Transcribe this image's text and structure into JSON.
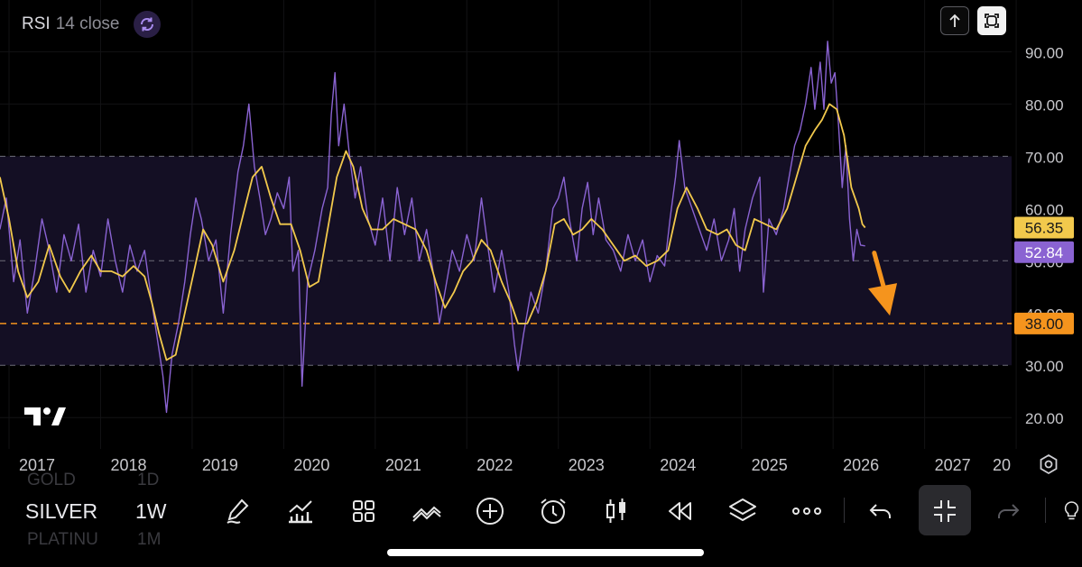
{
  "indicator": {
    "name": "RSI",
    "params": "14 close",
    "sync_icon": "sync-icon"
  },
  "controls": {
    "up_icon": "arrow-up-icon",
    "expand_icon": "expand-icon",
    "settings_icon": "gear-icon"
  },
  "chart_data": {
    "type": "line",
    "x_axis": {
      "labels": [
        "2017",
        "2018",
        "2019",
        "2020",
        "2021",
        "2022",
        "2023",
        "2024",
        "2025",
        "2026",
        "2027",
        "20"
      ],
      "range": [
        2017.0,
        2027.95
      ]
    },
    "y_axis": {
      "ticks": [
        20,
        30,
        40,
        50,
        60,
        70,
        80,
        90
      ],
      "tick_labels": [
        "20.00",
        "30.00",
        "40.00",
        "50.00",
        "60.00",
        "70.00",
        "80.00",
        "90.00"
      ],
      "range": [
        14,
        93
      ]
    },
    "overbought": 70,
    "oversold": 30,
    "midline": 50,
    "band_color": "#140f24",
    "series": [
      {
        "color": "#8a63d2",
        "last_value_label": "52.84",
        "points": [
          [
            2016.9,
            56
          ],
          [
            2016.97,
            62
          ],
          [
            2017.05,
            46
          ],
          [
            2017.12,
            54
          ],
          [
            2017.2,
            40
          ],
          [
            2017.28,
            48
          ],
          [
            2017.36,
            58
          ],
          [
            2017.44,
            52
          ],
          [
            2017.52,
            44
          ],
          [
            2017.6,
            55
          ],
          [
            2017.68,
            50
          ],
          [
            2017.76,
            57
          ],
          [
            2017.84,
            44
          ],
          [
            2017.92,
            52
          ],
          [
            2018.0,
            47
          ],
          [
            2018.08,
            58
          ],
          [
            2018.16,
            50
          ],
          [
            2018.24,
            44
          ],
          [
            2018.32,
            53
          ],
          [
            2018.4,
            48
          ],
          [
            2018.48,
            52
          ],
          [
            2018.56,
            42
          ],
          [
            2018.62,
            35
          ],
          [
            2018.68,
            28
          ],
          [
            2018.72,
            21
          ],
          [
            2018.78,
            32
          ],
          [
            2018.85,
            38
          ],
          [
            2018.92,
            46
          ],
          [
            2018.98,
            55
          ],
          [
            2019.04,
            62
          ],
          [
            2019.1,
            58
          ],
          [
            2019.18,
            50
          ],
          [
            2019.26,
            54
          ],
          [
            2019.34,
            40
          ],
          [
            2019.42,
            55
          ],
          [
            2019.5,
            67
          ],
          [
            2019.56,
            72
          ],
          [
            2019.62,
            80
          ],
          [
            2019.68,
            68
          ],
          [
            2019.74,
            62
          ],
          [
            2019.8,
            55
          ],
          [
            2019.86,
            58
          ],
          [
            2019.93,
            63
          ],
          [
            2020.0,
            60
          ],
          [
            2020.06,
            66
          ],
          [
            2020.1,
            48
          ],
          [
            2020.16,
            52
          ],
          [
            2020.2,
            26
          ],
          [
            2020.26,
            46
          ],
          [
            2020.34,
            52
          ],
          [
            2020.42,
            60
          ],
          [
            2020.48,
            64
          ],
          [
            2020.52,
            78
          ],
          [
            2020.56,
            86
          ],
          [
            2020.6,
            72
          ],
          [
            2020.66,
            80
          ],
          [
            2020.72,
            70
          ],
          [
            2020.78,
            62
          ],
          [
            2020.84,
            68
          ],
          [
            2020.92,
            58
          ],
          [
            2021.0,
            53
          ],
          [
            2021.08,
            62
          ],
          [
            2021.16,
            50
          ],
          [
            2021.24,
            64
          ],
          [
            2021.32,
            55
          ],
          [
            2021.4,
            62
          ],
          [
            2021.48,
            50
          ],
          [
            2021.56,
            56
          ],
          [
            2021.64,
            47
          ],
          [
            2021.7,
            38
          ],
          [
            2021.76,
            44
          ],
          [
            2021.84,
            52
          ],
          [
            2021.92,
            48
          ],
          [
            2022.0,
            55
          ],
          [
            2022.08,
            50
          ],
          [
            2022.16,
            62
          ],
          [
            2022.22,
            54
          ],
          [
            2022.3,
            44
          ],
          [
            2022.38,
            52
          ],
          [
            2022.46,
            44
          ],
          [
            2022.52,
            34
          ],
          [
            2022.56,
            29
          ],
          [
            2022.62,
            36
          ],
          [
            2022.7,
            44
          ],
          [
            2022.78,
            40
          ],
          [
            2022.86,
            48
          ],
          [
            2022.94,
            60
          ],
          [
            2023.0,
            62
          ],
          [
            2023.06,
            66
          ],
          [
            2023.12,
            58
          ],
          [
            2023.2,
            50
          ],
          [
            2023.26,
            60
          ],
          [
            2023.32,
            65
          ],
          [
            2023.38,
            55
          ],
          [
            2023.44,
            62
          ],
          [
            2023.52,
            54
          ],
          [
            2023.6,
            52
          ],
          [
            2023.68,
            48
          ],
          [
            2023.76,
            55
          ],
          [
            2023.84,
            50
          ],
          [
            2023.92,
            54
          ],
          [
            2024.0,
            46
          ],
          [
            2024.08,
            51
          ],
          [
            2024.16,
            49
          ],
          [
            2024.22,
            58
          ],
          [
            2024.28,
            66
          ],
          [
            2024.32,
            73
          ],
          [
            2024.38,
            64
          ],
          [
            2024.46,
            60
          ],
          [
            2024.54,
            56
          ],
          [
            2024.62,
            52
          ],
          [
            2024.7,
            58
          ],
          [
            2024.78,
            50
          ],
          [
            2024.86,
            54
          ],
          [
            2024.92,
            60
          ],
          [
            2024.98,
            48
          ],
          [
            2025.04,
            56
          ],
          [
            2025.12,
            62
          ],
          [
            2025.2,
            66
          ],
          [
            2025.24,
            44
          ],
          [
            2025.3,
            58
          ],
          [
            2025.38,
            55
          ],
          [
            2025.46,
            60
          ],
          [
            2025.52,
            66
          ],
          [
            2025.58,
            72
          ],
          [
            2025.64,
            75
          ],
          [
            2025.7,
            80
          ],
          [
            2025.76,
            87
          ],
          [
            2025.8,
            79
          ],
          [
            2025.86,
            88
          ],
          [
            2025.9,
            79
          ],
          [
            2025.94,
            92
          ],
          [
            2025.98,
            84
          ],
          [
            2026.02,
            86
          ],
          [
            2026.06,
            76
          ],
          [
            2026.1,
            64
          ],
          [
            2026.14,
            72
          ],
          [
            2026.18,
            58
          ],
          [
            2026.22,
            50
          ],
          [
            2026.26,
            56
          ],
          [
            2026.3,
            53
          ],
          [
            2026.35,
            52.84
          ]
        ]
      },
      {
        "color": "#f2c94c",
        "last_value_label": "56.35",
        "points": [
          [
            2016.9,
            66
          ],
          [
            2017.0,
            58
          ],
          [
            2017.1,
            48
          ],
          [
            2017.2,
            43
          ],
          [
            2017.32,
            46
          ],
          [
            2017.44,
            53
          ],
          [
            2017.56,
            47
          ],
          [
            2017.66,
            44
          ],
          [
            2017.78,
            48
          ],
          [
            2017.9,
            51
          ],
          [
            2018.0,
            48
          ],
          [
            2018.12,
            48
          ],
          [
            2018.24,
            47
          ],
          [
            2018.36,
            49
          ],
          [
            2018.48,
            47
          ],
          [
            2018.56,
            42
          ],
          [
            2018.64,
            36
          ],
          [
            2018.72,
            31
          ],
          [
            2018.82,
            32
          ],
          [
            2018.92,
            40
          ],
          [
            2019.02,
            48
          ],
          [
            2019.12,
            56
          ],
          [
            2019.22,
            53
          ],
          [
            2019.34,
            46
          ],
          [
            2019.46,
            52
          ],
          [
            2019.56,
            59
          ],
          [
            2019.66,
            66
          ],
          [
            2019.76,
            68
          ],
          [
            2019.86,
            62
          ],
          [
            2019.96,
            57
          ],
          [
            2020.08,
            57
          ],
          [
            2020.18,
            52
          ],
          [
            2020.28,
            45
          ],
          [
            2020.38,
            46
          ],
          [
            2020.48,
            56
          ],
          [
            2020.58,
            66
          ],
          [
            2020.68,
            71
          ],
          [
            2020.76,
            68
          ],
          [
            2020.86,
            60
          ],
          [
            2020.96,
            56
          ],
          [
            2021.08,
            56
          ],
          [
            2021.2,
            58
          ],
          [
            2021.32,
            57
          ],
          [
            2021.44,
            56
          ],
          [
            2021.56,
            52
          ],
          [
            2021.66,
            46
          ],
          [
            2021.76,
            41
          ],
          [
            2021.86,
            44
          ],
          [
            2021.96,
            48
          ],
          [
            2022.06,
            50
          ],
          [
            2022.16,
            54
          ],
          [
            2022.26,
            52
          ],
          [
            2022.38,
            46
          ],
          [
            2022.48,
            42
          ],
          [
            2022.56,
            38
          ],
          [
            2022.66,
            38
          ],
          [
            2022.76,
            42
          ],
          [
            2022.86,
            48
          ],
          [
            2022.96,
            57
          ],
          [
            2023.06,
            58
          ],
          [
            2023.16,
            55
          ],
          [
            2023.26,
            56
          ],
          [
            2023.36,
            58
          ],
          [
            2023.48,
            56
          ],
          [
            2023.6,
            53
          ],
          [
            2023.72,
            50
          ],
          [
            2023.84,
            51
          ],
          [
            2023.96,
            49
          ],
          [
            2024.08,
            50
          ],
          [
            2024.2,
            52
          ],
          [
            2024.3,
            60
          ],
          [
            2024.4,
            64
          ],
          [
            2024.52,
            60
          ],
          [
            2024.62,
            56
          ],
          [
            2024.74,
            55
          ],
          [
            2024.84,
            56
          ],
          [
            2024.94,
            53
          ],
          [
            2025.04,
            52
          ],
          [
            2025.14,
            58
          ],
          [
            2025.26,
            57
          ],
          [
            2025.38,
            56
          ],
          [
            2025.5,
            60
          ],
          [
            2025.6,
            66
          ],
          [
            2025.7,
            72
          ],
          [
            2025.8,
            75
          ],
          [
            2025.88,
            77
          ],
          [
            2025.96,
            80
          ],
          [
            2026.04,
            79
          ],
          [
            2026.12,
            74
          ],
          [
            2026.2,
            64
          ],
          [
            2026.28,
            60
          ],
          [
            2026.32,
            57
          ],
          [
            2026.35,
            56.35
          ]
        ]
      }
    ],
    "horizontal_line": {
      "value": 38,
      "label": "38.00",
      "color": "#f5941d"
    },
    "annotation": {
      "type": "arrow",
      "color": "#f5941d",
      "direction": "down"
    }
  },
  "toolbar": {
    "symbol": "SILVER",
    "timeframe": "1W",
    "ghost_above_symbol": "GOLD",
    "ghost_above_tf": "1D",
    "ghost_below_symbol": "PLATINU",
    "ghost_below_tf": "1M",
    "tools": [
      "pen-icon",
      "indicators-icon",
      "grid-icon",
      "patterns-icon",
      "add-icon",
      "alarm-icon",
      "candles-icon",
      "replay-icon",
      "layers-icon",
      "more-icon",
      "undo-icon",
      "collapse-icon",
      "redo-icon",
      "bulb-icon"
    ]
  }
}
